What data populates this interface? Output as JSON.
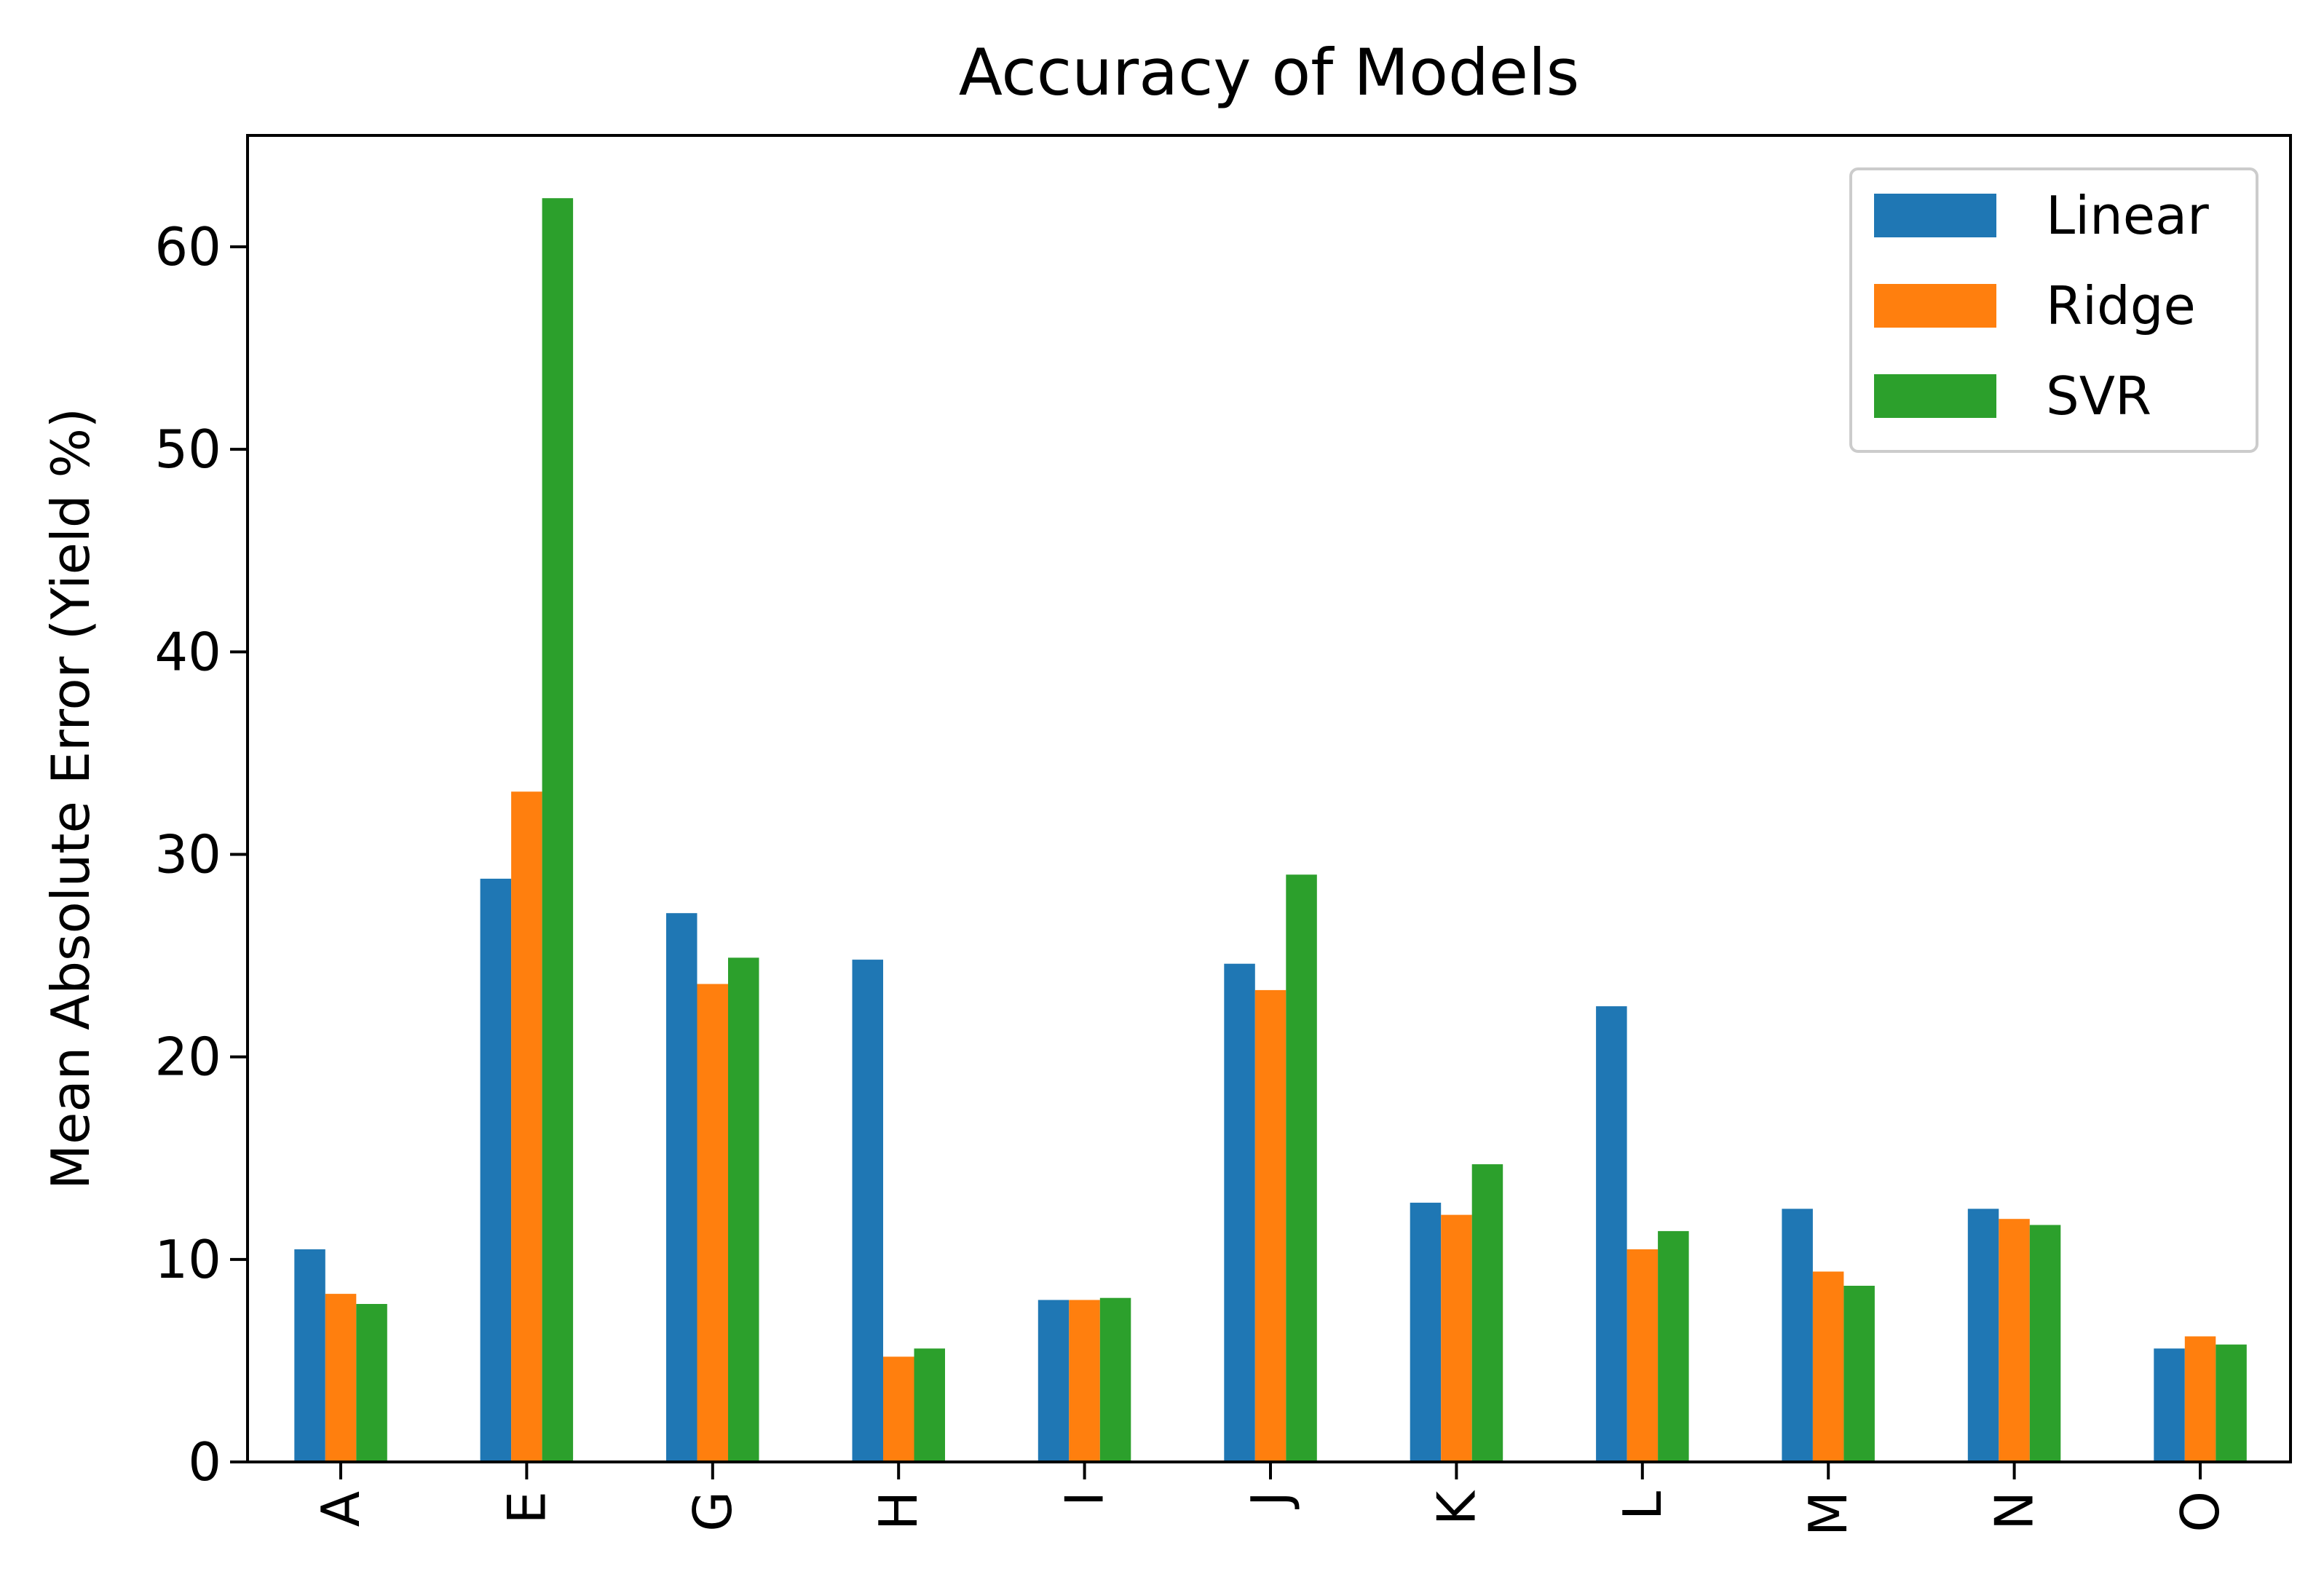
{
  "chart_data": {
    "type": "bar",
    "title": "Accuracy of Models",
    "xlabel": "",
    "ylabel": "Mean Absolute Error (Yield %)",
    "categories": [
      "A",
      "E",
      "G",
      "H",
      "I",
      "J",
      "K",
      "L",
      "M",
      "N",
      "O"
    ],
    "series": [
      {
        "name": "Linear",
        "color": "#1f77b4",
        "values": [
          10.5,
          28.8,
          27.1,
          24.8,
          8.0,
          24.6,
          12.8,
          22.5,
          12.5,
          12.5,
          5.6
        ]
      },
      {
        "name": "Ridge",
        "color": "#ff7f0e",
        "values": [
          8.3,
          33.1,
          23.6,
          5.2,
          8.0,
          23.3,
          12.2,
          10.5,
          9.4,
          12.0,
          6.2
        ]
      },
      {
        "name": "SVR",
        "color": "#2ca02c",
        "values": [
          7.8,
          62.4,
          24.9,
          5.6,
          8.1,
          29.0,
          14.7,
          11.4,
          8.7,
          11.7,
          5.8
        ]
      }
    ],
    "ylim": [
      0,
      65.5
    ],
    "yticks": [
      0,
      10,
      20,
      30,
      40,
      50,
      60
    ],
    "grid": false,
    "legend": "top-right",
    "xtick_rotation": 90
  }
}
